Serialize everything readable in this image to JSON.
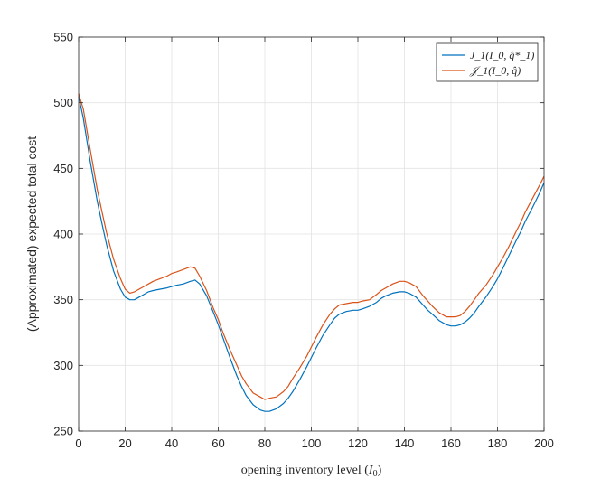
{
  "chart_data": {
    "type": "line",
    "title": "",
    "xlabel": "opening inventory level (I_0)",
    "ylabel": "(Approximated) expected total cost",
    "xlim": [
      0,
      200
    ],
    "ylim": [
      250,
      550
    ],
    "xticks": [
      0,
      20,
      40,
      60,
      80,
      100,
      120,
      140,
      160,
      180,
      200
    ],
    "yticks": [
      250,
      300,
      350,
      400,
      450,
      500,
      550
    ],
    "grid": true,
    "legend_position": "top-right",
    "series": [
      {
        "name": "J_1(I_0, q̂*_1)",
        "color": "#0072BD",
        "x": [
          0,
          2,
          5,
          8,
          10,
          12,
          15,
          18,
          20,
          22,
          24,
          26,
          28,
          30,
          32,
          35,
          38,
          40,
          42,
          45,
          48,
          50,
          52,
          55,
          58,
          60,
          62,
          65,
          68,
          70,
          72,
          75,
          78,
          80,
          82,
          85,
          88,
          90,
          92,
          95,
          98,
          100,
          102,
          105,
          108,
          110,
          112,
          115,
          118,
          120,
          122,
          125,
          128,
          130,
          132,
          135,
          138,
          140,
          142,
          145,
          148,
          150,
          152,
          155,
          158,
          160,
          162,
          164,
          166,
          168,
          170,
          172,
          175,
          178,
          180,
          182,
          185,
          188,
          190,
          192,
          195,
          198,
          200
        ],
        "values": [
          505,
          488,
          455,
          425,
          408,
          392,
          372,
          358,
          352,
          350,
          350,
          352,
          354,
          356,
          357,
          358,
          359,
          360,
          361,
          362,
          364,
          365,
          362,
          353,
          340,
          331,
          321,
          306,
          292,
          284,
          277,
          270,
          266,
          265,
          265,
          267,
          271,
          275,
          280,
          289,
          299,
          306,
          313,
          323,
          331,
          336,
          339,
          341,
          342,
          342,
          343,
          345,
          348,
          351,
          353,
          355,
          356,
          356,
          355,
          352,
          346,
          342,
          339,
          334,
          331,
          330,
          330,
          331,
          333,
          336,
          340,
          345,
          352,
          360,
          366,
          373,
          384,
          395,
          402,
          410,
          420,
          431,
          439
        ]
      },
      {
        "name": "𝒥_1(I_0, q̂)",
        "color": "#D95319",
        "x": [
          0,
          2,
          5,
          8,
          10,
          12,
          15,
          18,
          20,
          22,
          24,
          26,
          28,
          30,
          32,
          35,
          38,
          40,
          42,
          45,
          48,
          50,
          52,
          55,
          58,
          60,
          62,
          65,
          68,
          70,
          72,
          75,
          78,
          80,
          82,
          85,
          88,
          90,
          92,
          95,
          98,
          100,
          102,
          105,
          108,
          110,
          112,
          115,
          118,
          120,
          122,
          125,
          128,
          130,
          132,
          135,
          138,
          140,
          142,
          145,
          148,
          150,
          152,
          155,
          158,
          160,
          162,
          164,
          166,
          168,
          170,
          172,
          175,
          178,
          180,
          182,
          185,
          188,
          190,
          192,
          195,
          198,
          200
        ],
        "values": [
          507,
          495,
          464,
          434,
          417,
          401,
          381,
          366,
          358,
          355,
          356,
          358,
          360,
          362,
          364,
          366,
          368,
          370,
          371,
          373,
          375,
          374,
          368,
          357,
          343,
          335,
          325,
          312,
          300,
          292,
          286,
          279,
          276,
          274,
          275,
          276,
          280,
          284,
          290,
          298,
          307,
          314,
          321,
          331,
          339,
          343,
          346,
          347,
          348,
          348,
          349,
          350,
          354,
          357,
          359,
          362,
          364,
          364,
          363,
          360,
          353,
          349,
          345,
          340,
          337,
          337,
          337,
          338,
          341,
          345,
          350,
          355,
          361,
          369,
          375,
          381,
          391,
          402,
          409,
          417,
          427,
          437,
          444
        ]
      }
    ]
  }
}
